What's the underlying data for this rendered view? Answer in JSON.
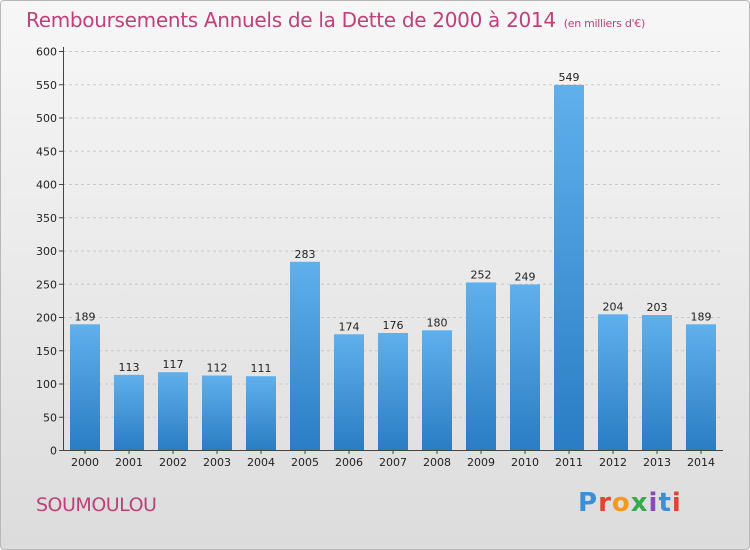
{
  "title": "Remboursements Annuels de la Dette de 2000 à 2014",
  "unit": "(en milliers d'€)",
  "commune": "SOUMOULOU",
  "logo": {
    "text": "Proxiti",
    "colors": [
      "#3a8fd6",
      "#e0452f",
      "#f29a1f",
      "#3aa84f",
      "#8c47b8",
      "#3a8fd6",
      "#e0452f"
    ]
  },
  "colors": {
    "title": "#c0407a",
    "bar_top": "#5fb0ec",
    "bar_bottom": "#2a7dc4",
    "grid": "#c9c9c9",
    "axis": "#444444"
  },
  "chart_data": {
    "type": "bar",
    "categories": [
      "2000",
      "2001",
      "2002",
      "2003",
      "2004",
      "2005",
      "2006",
      "2007",
      "2008",
      "2009",
      "2010",
      "2011",
      "2012",
      "2013",
      "2014"
    ],
    "values": [
      189,
      113,
      117,
      112,
      111,
      283,
      174,
      176,
      180,
      252,
      249,
      549,
      204,
      203,
      189
    ],
    "ylim": [
      0,
      600
    ],
    "yticks": [
      0,
      50,
      100,
      150,
      200,
      250,
      300,
      350,
      400,
      450,
      500,
      550,
      600
    ],
    "grid": true,
    "data_labels": true
  }
}
